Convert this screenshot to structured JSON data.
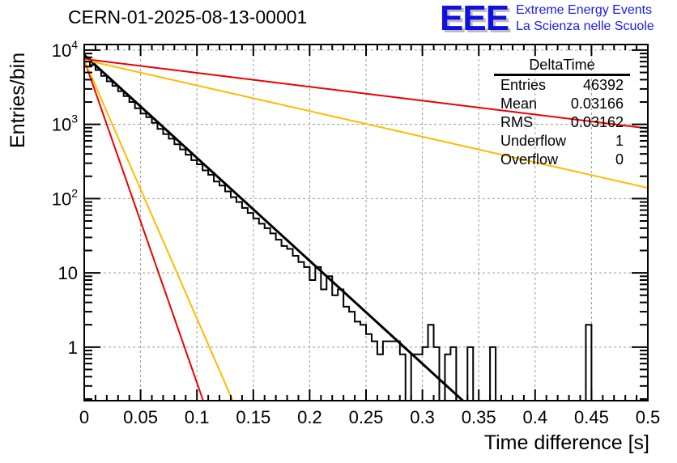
{
  "chart_data": {
    "type": "histogram",
    "title": "CERN-01-2025-08-13-00001",
    "xlabel": "Time difference [s]",
    "ylabel": "Entries/bin",
    "xlim": [
      0,
      0.5
    ],
    "ylim": [
      0.19,
      11900
    ],
    "yscale": "log",
    "grid": true,
    "x_ticks": [
      "0",
      "0.05",
      "0.1",
      "0.15",
      "0.2",
      "0.25",
      "0.3",
      "0.35",
      "0.4",
      "0.45",
      "0.5"
    ],
    "y_ticks": [
      {
        "value": 1,
        "label": "1",
        "sup": ""
      },
      {
        "value": 10,
        "label": "10",
        "sup": ""
      },
      {
        "value": 100,
        "label": "10",
        "sup": "2"
      },
      {
        "value": 1000,
        "label": "10",
        "sup": "3"
      },
      {
        "value": 10000,
        "label": "10",
        "sup": "4"
      }
    ],
    "histogram": {
      "name": "DeltaTime",
      "bin_width": 0.005,
      "color": "#000000",
      "values": [
        7900,
        6300,
        5400,
        4500,
        3800,
        3300,
        2800,
        2400,
        2000,
        1650,
        1400,
        1250,
        1050,
        870,
        740,
        640,
        540,
        460,
        390,
        330,
        290,
        240,
        210,
        170,
        150,
        125,
        105,
        90,
        75,
        64,
        54,
        46,
        40,
        34,
        28,
        23,
        21,
        17,
        14,
        12,
        8,
        12,
        6,
        9,
        5,
        6,
        3.5,
        3,
        2.2,
        2,
        1.5,
        1.2,
        0.8,
        1.2,
        1.2,
        1.2,
        0.8,
        0,
        0.8,
        0.8,
        1,
        2,
        1,
        0,
        0.8,
        1,
        0,
        0,
        1,
        0,
        0,
        0,
        1,
        0,
        0,
        0,
        0,
        0,
        0,
        0,
        0,
        0,
        0,
        0,
        0,
        0,
        0,
        0,
        0,
        2,
        0,
        0,
        0,
        0,
        0,
        0,
        0,
        0,
        0,
        0
      ]
    },
    "fits": [
      {
        "name": "fit",
        "color": "#000000",
        "amplitude": 8600,
        "log10_slope": -13.86
      },
      {
        "name": "red-steep",
        "color": "#ee0000",
        "amplitude": 7400,
        "log10_slope": -43.5
      },
      {
        "name": "yellow-steep",
        "color": "#ffbb00",
        "amplitude": 7400,
        "log10_slope": -34.85
      },
      {
        "name": "red-shallow",
        "color": "#ee0000",
        "amplitude": 7600,
        "log10_slope": -1.87
      },
      {
        "name": "yellow-shallow",
        "color": "#ffbb00",
        "amplitude": 7400,
        "log10_slope": -3.45
      }
    ],
    "stats": {
      "title": "DeltaTime",
      "rows": [
        {
          "label": "Entries",
          "value": "46392"
        },
        {
          "label": "Mean",
          "value": "0.03166"
        },
        {
          "label": "RMS",
          "value": "0.03162"
        },
        {
          "label": "Underflow",
          "value": "1"
        },
        {
          "label": "Overflow",
          "value": "0"
        }
      ]
    }
  },
  "logo": {
    "mark": "EEE",
    "line1": "Extreme Energy Events",
    "line2": "La Scienza nelle Scuole"
  }
}
